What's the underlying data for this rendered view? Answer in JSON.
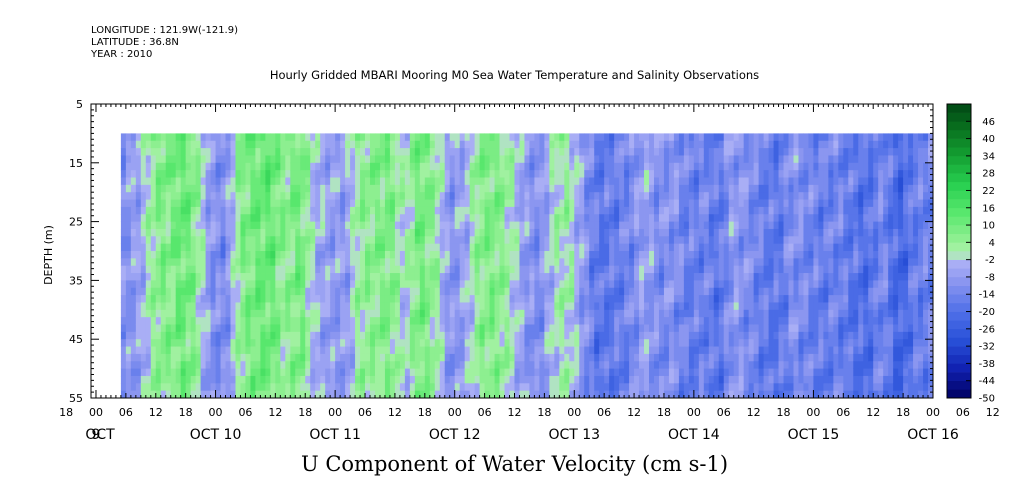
{
  "header": {
    "longitude": "LONGITUDE : 121.9W(-121.9)",
    "latitude": "LATITUDE : 36.8N",
    "year": "YEAR : 2010"
  },
  "chart_data": {
    "type": "heatmap",
    "title": "Hourly Gridded MBARI Mooring M0 Sea Water Temperature and Salinity Observations",
    "xlabel": "U Component of Water Velocity (cm s-1)",
    "ylabel": "DEPTH (m)",
    "y_range": [
      5,
      55
    ],
    "y_ticks": [
      5,
      15,
      25,
      35,
      45,
      55
    ],
    "y_reversed": true,
    "data_depth_range": [
      10,
      55
    ],
    "x_range_hours": [
      0,
      169
    ],
    "x_hour_ticks": [
      "18",
      "00",
      "06",
      "12",
      "18",
      "00",
      "06",
      "12",
      "18",
      "00",
      "06",
      "12",
      "18",
      "00",
      "06",
      "12",
      "18",
      "00",
      "06",
      "12",
      "18",
      "00",
      "06",
      "12",
      "18",
      "00",
      "06",
      "12",
      "18",
      "00",
      "06",
      "12"
    ],
    "x_day_labels": [
      "OCT  9",
      "OCT 10",
      "OCT 11",
      "OCT 12",
      "OCT 13",
      "OCT 14",
      "OCT 15",
      "OCT 16"
    ],
    "x_oct_label": "OCT",
    "colorbar": {
      "labels": [
        46,
        40,
        34,
        28,
        22,
        16,
        10,
        4,
        -2,
        -8,
        -14,
        -20,
        -26,
        -32,
        -38,
        -44,
        -50
      ],
      "range": [
        -50,
        52
      ],
      "step": 3
    },
    "field_profile": {
      "hours": [
        0,
        6,
        10,
        12,
        14,
        16,
        18,
        21,
        24,
        27,
        30,
        33,
        36,
        39,
        42,
        45,
        48,
        51,
        54,
        57,
        60,
        63,
        66,
        69,
        72,
        75,
        78,
        81,
        84,
        87,
        90,
        93,
        96,
        99,
        102,
        105,
        108,
        111,
        114,
        117,
        120,
        123,
        126,
        129,
        132,
        135,
        138,
        141,
        144,
        147,
        150,
        153,
        156,
        159,
        162,
        165,
        169
      ],
      "values": [
        -10,
        -12,
        -6,
        2,
        8,
        6,
        12,
        6,
        -10,
        -12,
        6,
        10,
        12,
        4,
        10,
        -4,
        -8,
        -8,
        4,
        6,
        8,
        -2,
        10,
        4,
        -10,
        -6,
        6,
        8,
        2,
        -8,
        -12,
        0,
        2,
        -10,
        -18,
        -16,
        -14,
        -6,
        -12,
        -10,
        -16,
        -14,
        -18,
        -8,
        -12,
        -16,
        -18,
        -10,
        -14,
        -16,
        -14,
        -18,
        -20,
        -12,
        -24,
        -16,
        -14
      ]
    }
  }
}
